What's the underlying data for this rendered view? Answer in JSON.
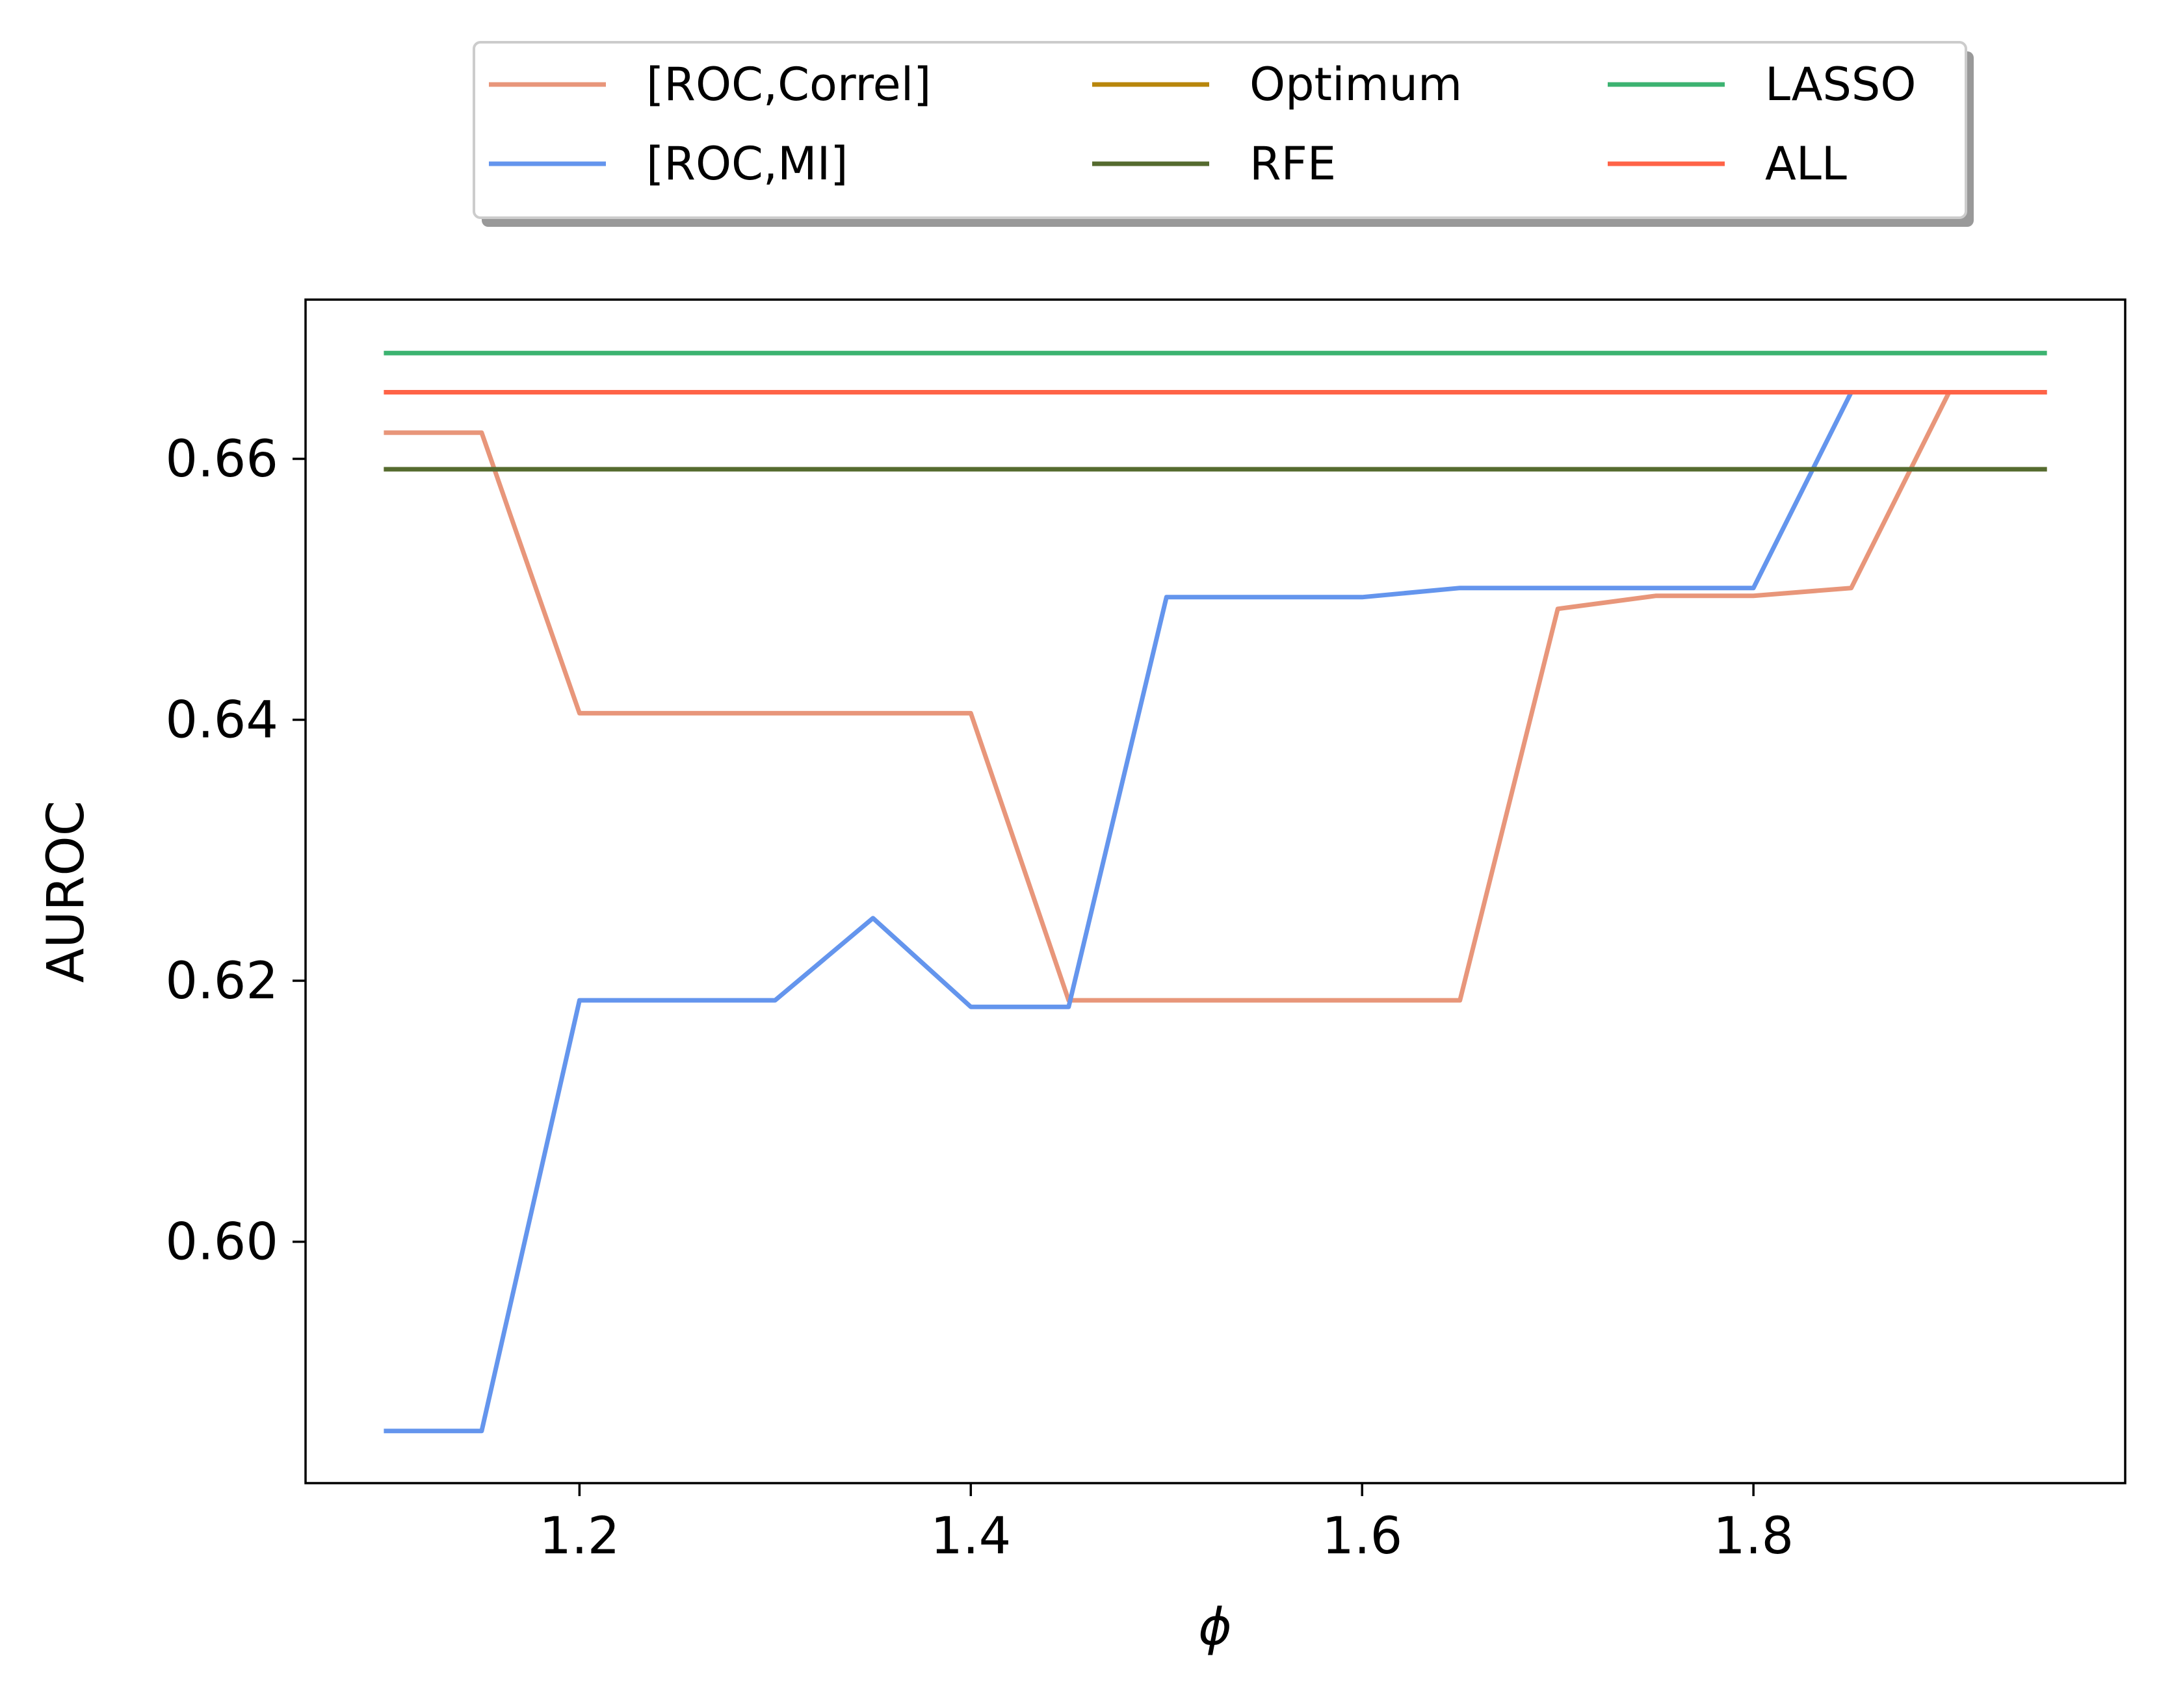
{
  "chart_data": {
    "type": "line",
    "title": "",
    "xlabel": "ϕ",
    "ylabel": "AUROC",
    "xlim": [
      1.06,
      1.99
    ],
    "ylim": [
      0.5815,
      0.6722
    ],
    "xticks": [
      1.2,
      1.4,
      1.6,
      1.8
    ],
    "xtick_labels": [
      "1.2",
      "1.4",
      "1.6",
      "1.8"
    ],
    "yticks": [
      0.6,
      0.62,
      0.64,
      0.66
    ],
    "ytick_labels": [
      "0.60",
      "0.62",
      "0.64",
      "0.66"
    ],
    "grid": false,
    "legend_position": "top-center, outside plot, 3 columns",
    "series": [
      {
        "name": "[ROC,Correl]",
        "color": "#E8967A",
        "x": [
          1.1,
          1.15,
          1.2,
          1.25,
          1.3,
          1.35,
          1.4,
          1.45,
          1.5,
          1.55,
          1.6,
          1.65,
          1.7,
          1.75,
          1.8,
          1.85,
          1.9,
          1.95
        ],
        "y": [
          0.662,
          0.662,
          0.6405,
          0.6405,
          0.6405,
          0.6405,
          0.6405,
          0.6185,
          0.6185,
          0.6185,
          0.6185,
          0.6185,
          0.6485,
          0.6495,
          0.6495,
          0.6501,
          0.6651,
          0.6651
        ]
      },
      {
        "name": "[ROC,MI]",
        "color": "#6495ED",
        "x": [
          1.1,
          1.15,
          1.2,
          1.25,
          1.3,
          1.35,
          1.4,
          1.45,
          1.5,
          1.55,
          1.6,
          1.65,
          1.7,
          1.75,
          1.8,
          1.85,
          1.9,
          1.95
        ],
        "y": [
          0.5855,
          0.5855,
          0.6185,
          0.6185,
          0.6185,
          0.6248,
          0.618,
          0.618,
          0.6494,
          0.6494,
          0.6494,
          0.6501,
          0.6501,
          0.6501,
          0.6501,
          0.6651,
          0.6651,
          0.6651
        ]
      },
      {
        "name": "Optimum",
        "color": "#B8860B",
        "x": [
          1.1,
          1.95
        ],
        "y": [
          0.6592,
          0.6592
        ]
      },
      {
        "name": "RFE",
        "color": "#556B2F",
        "x": [
          1.1,
          1.95
        ],
        "y": [
          0.6592,
          0.6592
        ]
      },
      {
        "name": "LASSO",
        "color": "#3CB371",
        "x": [
          1.1,
          1.95
        ],
        "y": [
          0.6681,
          0.6681
        ]
      },
      {
        "name": "ALL",
        "color": "#FF6347",
        "x": [
          1.1,
          1.95
        ],
        "y": [
          0.6651,
          0.6651
        ]
      }
    ]
  }
}
